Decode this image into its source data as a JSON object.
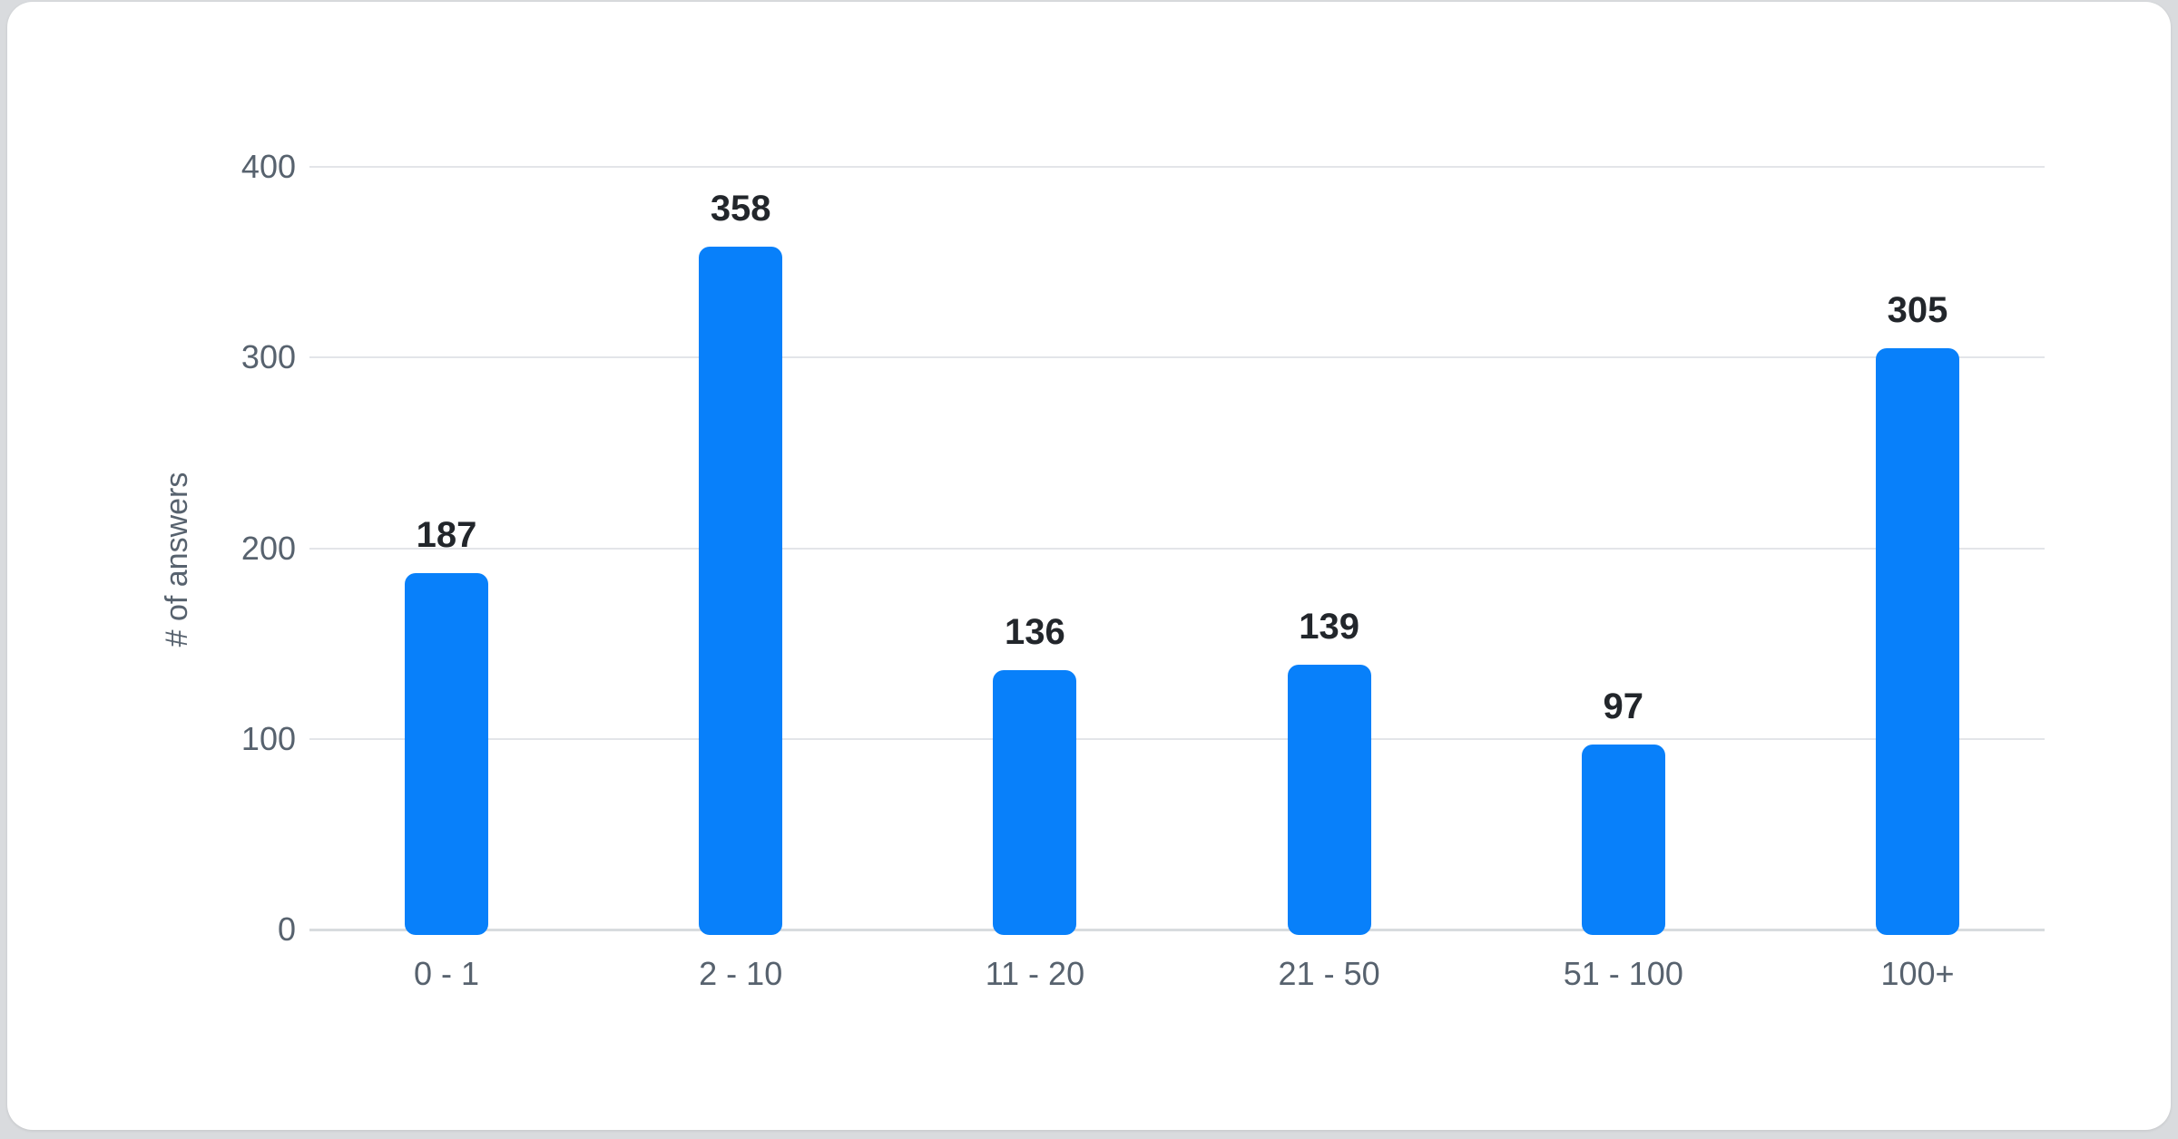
{
  "page": {
    "background_color": "#d9dbde",
    "card_color": "#ffffff"
  },
  "chart_data": {
    "type": "bar",
    "categories": [
      "0 - 1",
      "2 - 10",
      "11 - 20",
      "21 - 50",
      "51 - 100",
      "100+"
    ],
    "values": [
      187,
      358,
      136,
      139,
      97,
      305
    ],
    "data_labels": [
      "187",
      "358",
      "136",
      "139",
      "97",
      "305"
    ],
    "ylabel": "# of answers",
    "xlabel": "",
    "ylim": [
      0,
      400
    ],
    "yticks": [
      "0",
      "100",
      "200",
      "300",
      "400"
    ],
    "grid": "horizontal gridlines on",
    "legend": "none",
    "colors": {
      "bar": "#0880fa",
      "value_label": "#22262b",
      "axis_text": "#57626e",
      "gridline": "#e3e5e9",
      "zero_line": "#d8dbde"
    }
  }
}
